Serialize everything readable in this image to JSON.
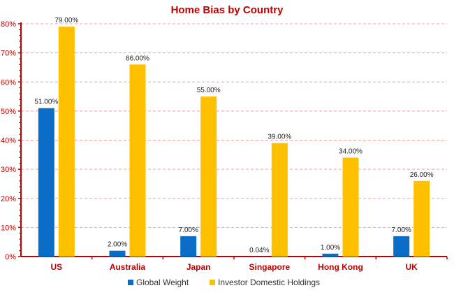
{
  "colors": {
    "title": "#c00000",
    "axis": "#c00000",
    "grid": "#f4a0a0",
    "global_weight": "#0a6ec9",
    "investor_domestic": "#ffc000"
  },
  "chart_data": {
    "type": "bar",
    "title": "Home Bias by Country",
    "xlabel": "",
    "ylabel": "",
    "categories": [
      "US",
      "Australia",
      "Japan",
      "Singapore",
      "Hong Kong",
      "UK"
    ],
    "series": [
      {
        "name": "Global Weight",
        "values": [
          51.0,
          2.0,
          7.0,
          0.04,
          1.0,
          7.0
        ],
        "labels": [
          "51.00%",
          "2.00%",
          "7.00%",
          "0.04%",
          "1.00%",
          "7.00%"
        ]
      },
      {
        "name": "Investor Domestic Holdings",
        "values": [
          79.0,
          66.0,
          55.0,
          39.0,
          34.0,
          26.0
        ],
        "labels": [
          "79.00%",
          "66.00%",
          "55.00%",
          "39.00%",
          "34.00%",
          "26.00%"
        ]
      }
    ],
    "ylim": [
      0,
      80
    ],
    "yticks": [
      "0%",
      "10%",
      "20%",
      "30%",
      "40%",
      "50%",
      "60%",
      "70%",
      "80%"
    ],
    "grid": true,
    "legend": "bottom"
  }
}
